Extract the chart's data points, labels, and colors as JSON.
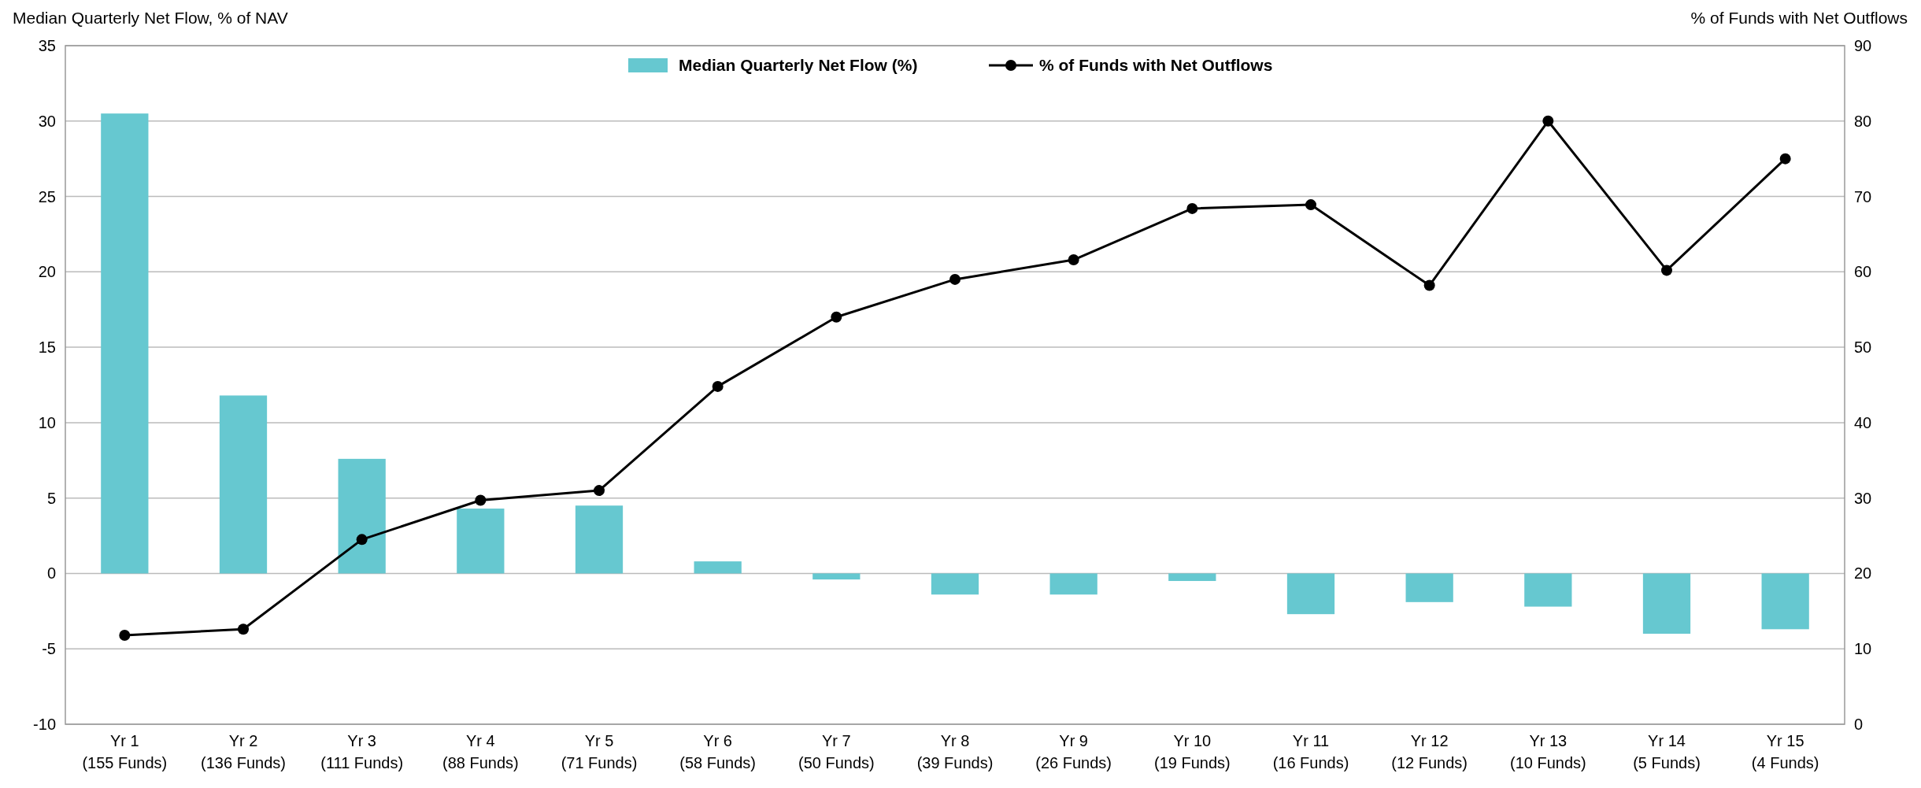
{
  "chart_data": {
    "type": "bar",
    "ylabel": "Median Quarterly Net Flow, % of NAV",
    "y2label": "% of Funds with Net Outflows",
    "categories": [
      "Yr 1\n(155 Funds)",
      "Yr 2\n(136 Funds)",
      "Yr 3\n(111 Funds)",
      "Yr 4\n(88 Funds)",
      "Yr 5\n(71 Funds)",
      "Yr 6\n(58 Funds)",
      "Yr 7\n(50 Funds)",
      "Yr 8\n(39 Funds)",
      "Yr 9\n(26 Funds)",
      "Yr 10\n(19 Funds)",
      "Yr 11\n(16 Funds)",
      "Yr 12\n(12 Funds)",
      "Yr 13\n(10 Funds)",
      "Yr 14\n(5 Funds)",
      "Yr 15\n(4 Funds)"
    ],
    "series": [
      {
        "name": "Median Quarterly Net Flow (%)",
        "color": "#66c8d0",
        "values": [
          30.5,
          11.8,
          7.6,
          4.3,
          4.5,
          0.8,
          -0.4,
          -1.4,
          -1.4,
          -0.5,
          -2.7,
          -1.9,
          -2.2,
          -4.0,
          -3.7
        ]
      },
      {
        "name": "% of Funds with Net Outflows",
        "type": "line",
        "axis": "y2",
        "color": "#000000",
        "values": [
          11.8,
          12.6,
          24.5,
          29.7,
          31,
          44.8,
          54,
          59,
          61.6,
          68.4,
          68.9,
          58.2,
          80,
          60.2,
          75
        ]
      }
    ],
    "ylim": [
      -10,
      35
    ],
    "yticks": [
      -10,
      -5,
      0,
      5,
      10,
      15,
      20,
      25,
      30,
      35
    ],
    "y2lim": [
      0,
      90
    ],
    "y2ticks": [
      0,
      10,
      20,
      30,
      40,
      50,
      60,
      70,
      80,
      90
    ],
    "grid": "y",
    "legend": "top",
    "marker": "circle",
    "line_style": "solid"
  }
}
